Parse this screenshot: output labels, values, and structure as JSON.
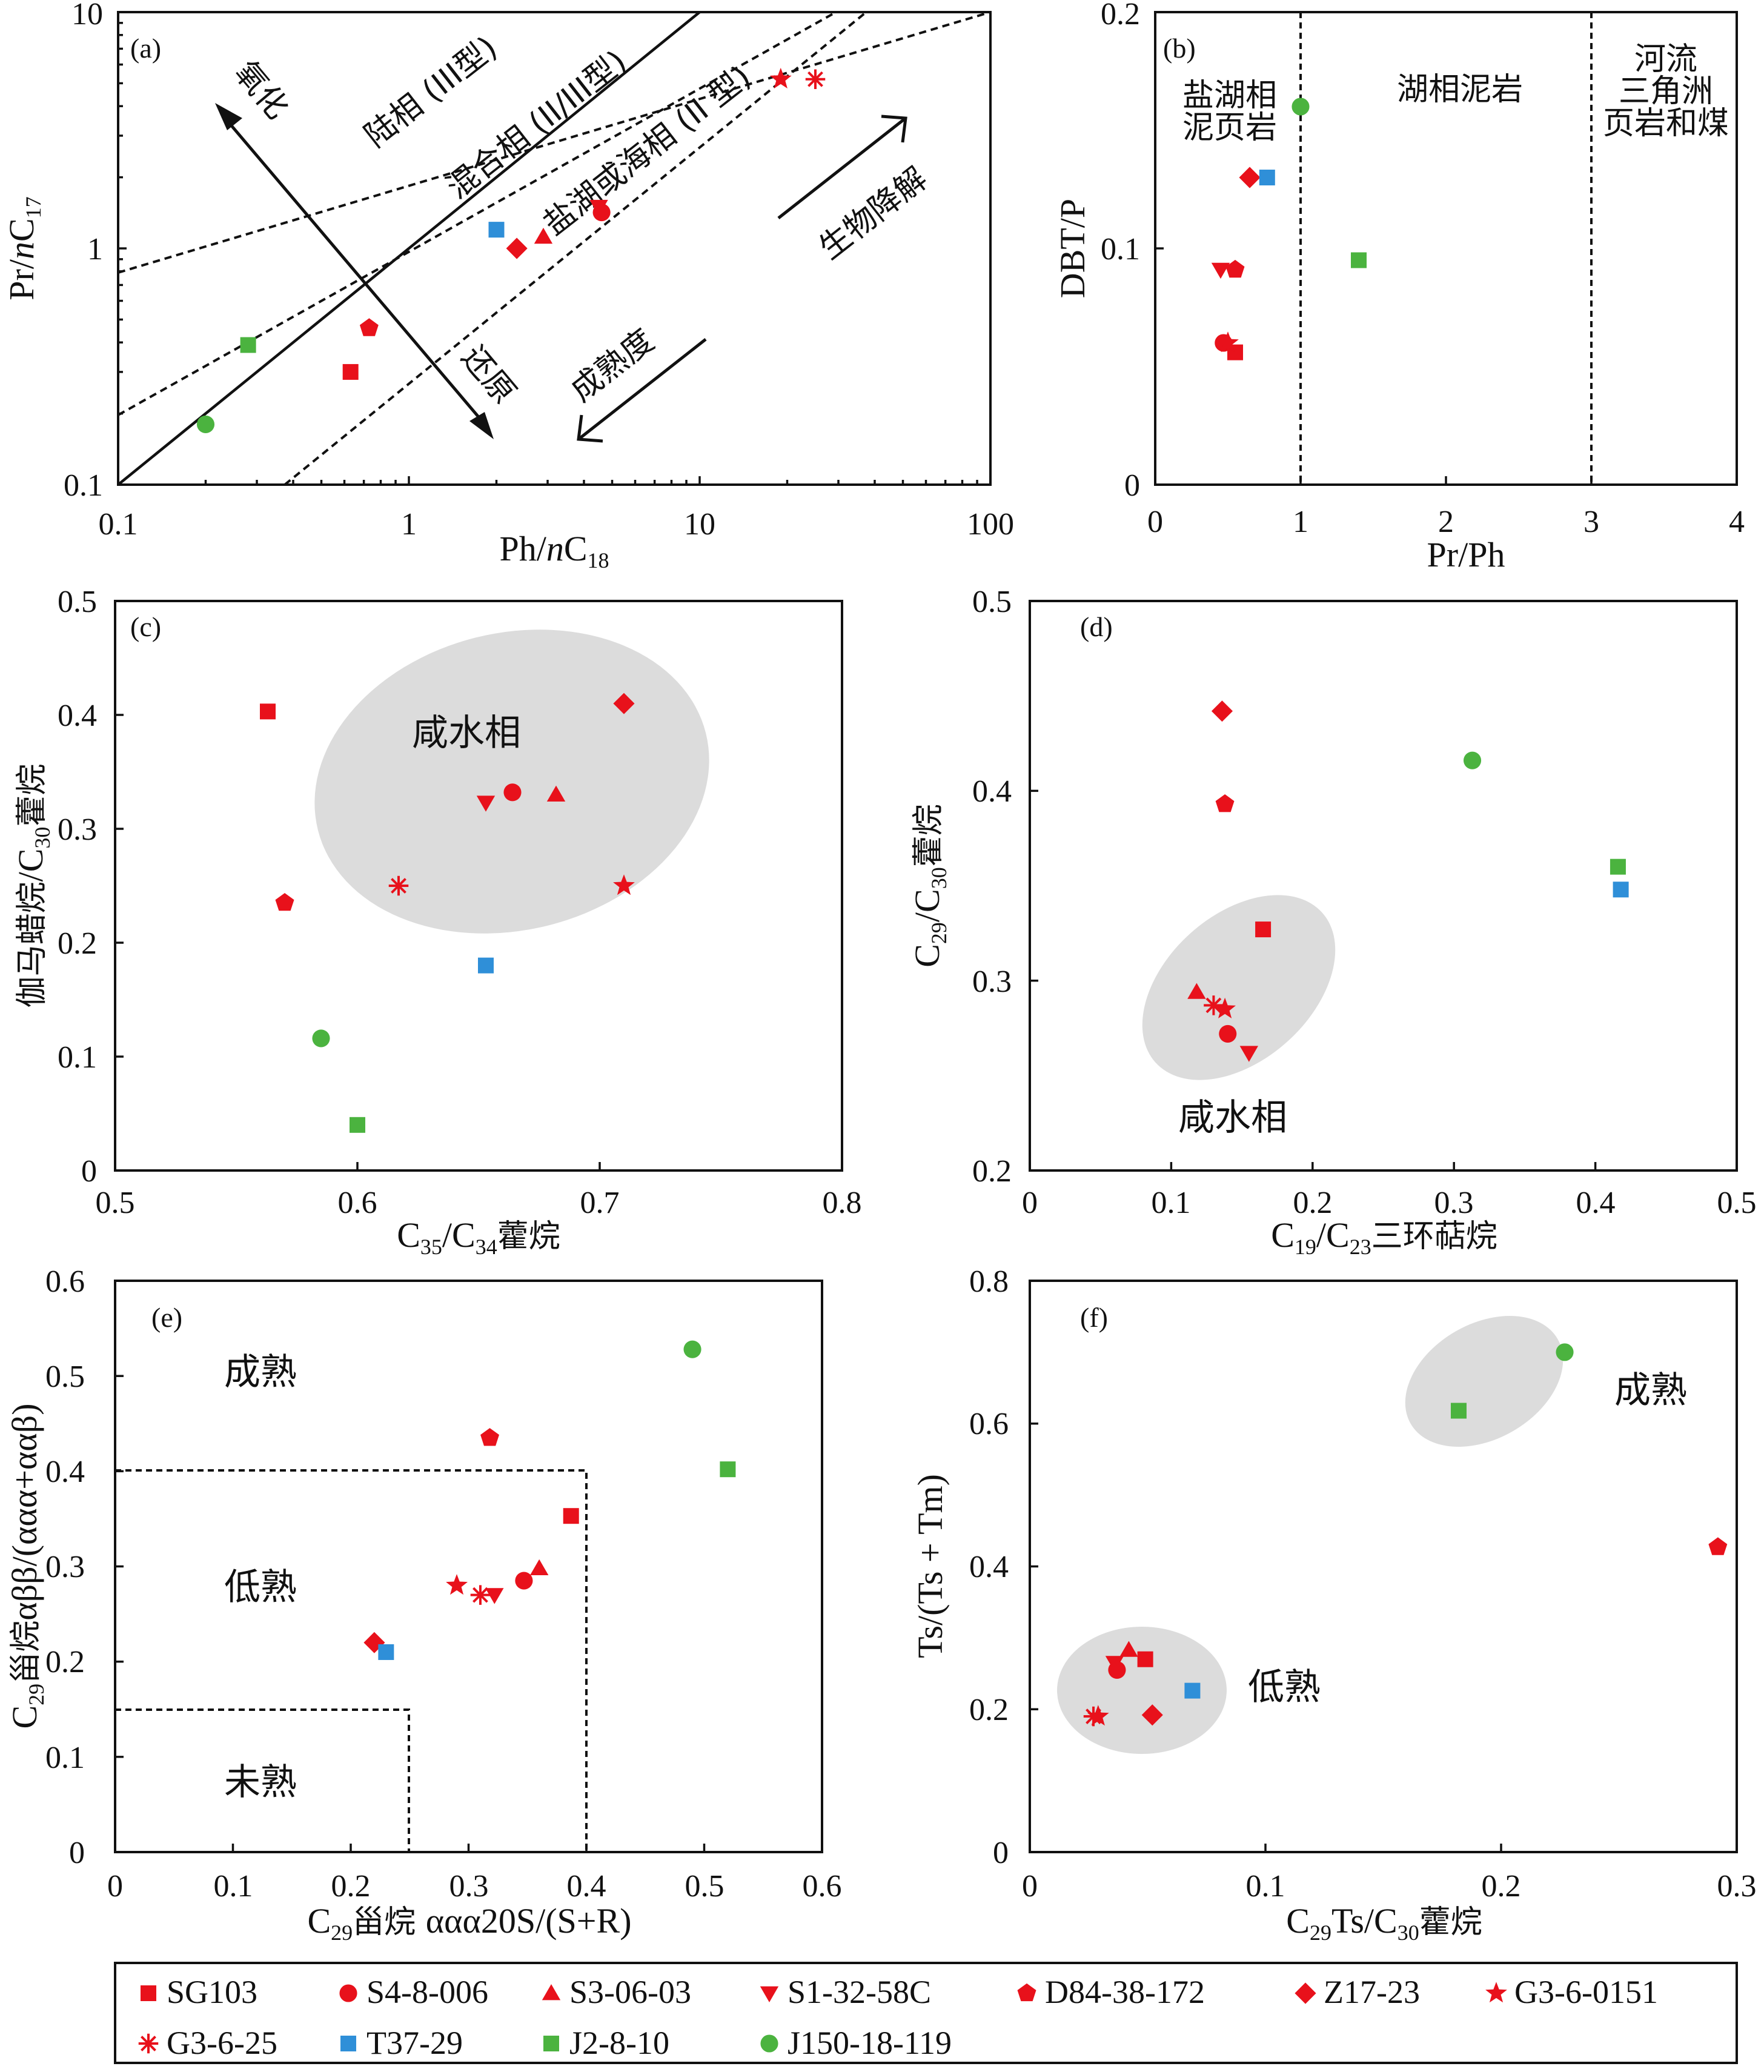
{
  "colors": {
    "red": "#e8111b",
    "blue": "#2f8fd8",
    "green": "#4bb33f",
    "gray": "#dcdcdc"
  },
  "legend": [
    {
      "name": "SG103",
      "marker": "square",
      "color": "#e8111b"
    },
    {
      "name": "S4-8-006",
      "marker": "circle",
      "color": "#e8111b"
    },
    {
      "name": "S3-06-03",
      "marker": "triangle-up",
      "color": "#e8111b"
    },
    {
      "name": "S1-32-58C",
      "marker": "triangle-down",
      "color": "#e8111b"
    },
    {
      "name": "D84-38-172",
      "marker": "pentagon",
      "color": "#e8111b"
    },
    {
      "name": "Z17-23",
      "marker": "diamond",
      "color": "#e8111b"
    },
    {
      "name": "G3-6-0151",
      "marker": "star",
      "color": "#e8111b"
    },
    {
      "name": "G3-6-25",
      "marker": "asterisk",
      "color": "#e8111b"
    },
    {
      "name": "T37-29",
      "marker": "square",
      "color": "#2f8fd8"
    },
    {
      "name": "J2-8-10",
      "marker": "square",
      "color": "#4bb33f"
    },
    {
      "name": "J150-18-119",
      "marker": "circle",
      "color": "#4bb33f"
    }
  ],
  "chart_data": [
    {
      "panel": "(a)",
      "type": "scatter",
      "xscale": "log",
      "yscale": "log",
      "xlim": [
        0.1,
        100
      ],
      "ylim": [
        0.1,
        10
      ],
      "xticks": [
        "0.1",
        "1",
        "10",
        "100"
      ],
      "yticks": [
        "0.1",
        "1",
        "10"
      ],
      "xlabel": "Ph/nC18",
      "ylabel": "Pr/nC17",
      "annotations": [
        "陆相 (III型)",
        "混合相 (II/III型)",
        "盐湖或海相 (II 型)",
        "氧化",
        "还原",
        "成熟度",
        "生物降解"
      ],
      "points": [
        {
          "sample": "SG103",
          "x": 0.63,
          "y": 0.3
        },
        {
          "sample": "S4-8-006",
          "x": 4.6,
          "y": 1.42
        },
        {
          "sample": "S3-06-03",
          "x": 2.9,
          "y": 1.12
        },
        {
          "sample": "S1-32-58C",
          "x": 4.5,
          "y": 1.5
        },
        {
          "sample": "D84-38-172",
          "x": 0.73,
          "y": 0.46
        },
        {
          "sample": "Z17-23",
          "x": 2.35,
          "y": 1.0
        },
        {
          "sample": "G3-6-0151",
          "x": 19,
          "y": 5.2
        },
        {
          "sample": "G3-6-25",
          "x": 25,
          "y": 5.2
        },
        {
          "sample": "T37-29",
          "x": 2.0,
          "y": 1.2
        },
        {
          "sample": "J2-8-10",
          "x": 0.28,
          "y": 0.39
        },
        {
          "sample": "J150-18-119",
          "x": 0.2,
          "y": 0.18
        }
      ]
    },
    {
      "panel": "(b)",
      "type": "scatter",
      "xlim": [
        0,
        4
      ],
      "ylim": [
        0,
        0.2
      ],
      "xticks": [
        "0",
        "1",
        "2",
        "3",
        "4"
      ],
      "yticks": [
        "0",
        "0.1",
        "0.2"
      ],
      "xlabel": "Pr/Ph",
      "ylabel": "DBT/P",
      "zones": [
        "盐湖相",
        "泥页岩",
        "湖相泥岩",
        "河流",
        "三角洲",
        "页岩和煤"
      ],
      "points": [
        {
          "sample": "SG103",
          "x": 0.55,
          "y": 0.056
        },
        {
          "sample": "S4-8-006",
          "x": 0.47,
          "y": 0.06
        },
        {
          "sample": "S1-32-58C",
          "x": 0.45,
          "y": 0.091
        },
        {
          "sample": "D84-38-172",
          "x": 0.55,
          "y": 0.091
        },
        {
          "sample": "Z17-23",
          "x": 0.65,
          "y": 0.13
        },
        {
          "sample": "G3-6-0151",
          "x": 0.5,
          "y": 0.06
        },
        {
          "sample": "T37-29",
          "x": 0.77,
          "y": 0.13
        },
        {
          "sample": "J2-8-10",
          "x": 1.4,
          "y": 0.095
        },
        {
          "sample": "J150-18-119",
          "x": 1.0,
          "y": 0.16
        }
      ]
    },
    {
      "panel": "(c)",
      "type": "scatter",
      "xlim": [
        0.5,
        0.8
      ],
      "ylim": [
        0,
        0.5
      ],
      "xticks": [
        "0.5",
        "0.6",
        "0.7",
        "0.8"
      ],
      "yticks": [
        "0",
        "0.1",
        "0.2",
        "0.3",
        "0.4",
        "0.5"
      ],
      "xlabel": "C35/C34藿烷",
      "ylabel": "伽马蜡烷/C30藿烷",
      "zone_label": "咸水相",
      "points": [
        {
          "sample": "SG103",
          "x": 0.563,
          "y": 0.403
        },
        {
          "sample": "S4-8-006",
          "x": 0.664,
          "y": 0.332
        },
        {
          "sample": "S3-06-03",
          "x": 0.682,
          "y": 0.33
        },
        {
          "sample": "S1-32-58C",
          "x": 0.653,
          "y": 0.323
        },
        {
          "sample": "D84-38-172",
          "x": 0.57,
          "y": 0.235
        },
        {
          "sample": "Z17-23",
          "x": 0.71,
          "y": 0.41
        },
        {
          "sample": "G3-6-0151",
          "x": 0.71,
          "y": 0.25
        },
        {
          "sample": "G3-6-25",
          "x": 0.617,
          "y": 0.25
        },
        {
          "sample": "T37-29",
          "x": 0.653,
          "y": 0.18
        },
        {
          "sample": "J2-8-10",
          "x": 0.6,
          "y": 0.04
        },
        {
          "sample": "J150-18-119",
          "x": 0.585,
          "y": 0.116
        }
      ]
    },
    {
      "panel": "(d)",
      "type": "scatter",
      "xlim": [
        0,
        0.5
      ],
      "ylim": [
        0.2,
        0.5
      ],
      "xticks": [
        "0",
        "0.1",
        "0.2",
        "0.3",
        "0.4",
        "0.5"
      ],
      "yticks": [
        "0.2",
        "0.3",
        "0.4",
        "0.5"
      ],
      "xlabel": "C19/C23三环萜烷",
      "ylabel": "C29/C30藿烷",
      "zone_label": "咸水相",
      "points": [
        {
          "sample": "SG103",
          "x": 0.165,
          "y": 0.327
        },
        {
          "sample": "S4-8-006",
          "x": 0.14,
          "y": 0.272
        },
        {
          "sample": "S3-06-03",
          "x": 0.118,
          "y": 0.294
        },
        {
          "sample": "S1-32-58C",
          "x": 0.155,
          "y": 0.262
        },
        {
          "sample": "D84-38-172",
          "x": 0.138,
          "y": 0.393
        },
        {
          "sample": "Z17-23",
          "x": 0.136,
          "y": 0.442
        },
        {
          "sample": "G3-6-0151",
          "x": 0.138,
          "y": 0.285
        },
        {
          "sample": "G3-6-25",
          "x": 0.13,
          "y": 0.287
        },
        {
          "sample": "T37-29",
          "x": 0.418,
          "y": 0.348
        },
        {
          "sample": "J2-8-10",
          "x": 0.416,
          "y": 0.36
        },
        {
          "sample": "J150-18-119",
          "x": 0.313,
          "y": 0.416
        }
      ]
    },
    {
      "panel": "(e)",
      "type": "scatter",
      "xlim": [
        0,
        0.6
      ],
      "ylim": [
        0,
        0.6
      ],
      "xticks": [
        "0",
        "0.1",
        "0.2",
        "0.3",
        "0.4",
        "0.5",
        "0.6"
      ],
      "yticks": [
        "0",
        "0.1",
        "0.2",
        "0.3",
        "0.4",
        "0.5",
        "0.6"
      ],
      "xlabel": "C29甾烷 ααα20S/(S+R)",
      "ylabel": "C29甾烷αββ/(ααα+ααβ)",
      "zones": [
        "成熟",
        "低熟",
        "未熟"
      ],
      "points": [
        {
          "sample": "SG103",
          "x": 0.387,
          "y": 0.353
        },
        {
          "sample": "S4-8-006",
          "x": 0.347,
          "y": 0.285
        },
        {
          "sample": "S3-06-03",
          "x": 0.36,
          "y": 0.298
        },
        {
          "sample": "S1-32-58C",
          "x": 0.322,
          "y": 0.27
        },
        {
          "sample": "D84-38-172",
          "x": 0.318,
          "y": 0.435
        },
        {
          "sample": "Z17-23",
          "x": 0.22,
          "y": 0.22
        },
        {
          "sample": "G3-6-0151",
          "x": 0.29,
          "y": 0.28
        },
        {
          "sample": "G3-6-25",
          "x": 0.31,
          "y": 0.27
        },
        {
          "sample": "T37-29",
          "x": 0.23,
          "y": 0.21
        },
        {
          "sample": "J2-8-10",
          "x": 0.52,
          "y": 0.402
        },
        {
          "sample": "J150-18-119",
          "x": 0.49,
          "y": 0.528
        }
      ]
    },
    {
      "panel": "(f)",
      "type": "scatter",
      "xlim": [
        0,
        0.3
      ],
      "ylim": [
        0,
        0.8
      ],
      "xticks": [
        "0",
        "0.1",
        "0.2",
        "0.3"
      ],
      "yticks": [
        "0",
        "0.2",
        "0.4",
        "0.6",
        "0.8"
      ],
      "xlabel": "C29Ts/C30藿烷",
      "ylabel": "Ts/(Ts + Tm)",
      "zones": [
        "成熟",
        "低熟"
      ],
      "points": [
        {
          "sample": "SG103",
          "x": 0.049,
          "y": 0.27
        },
        {
          "sample": "S4-8-006",
          "x": 0.037,
          "y": 0.255
        },
        {
          "sample": "S3-06-03",
          "x": 0.042,
          "y": 0.283
        },
        {
          "sample": "S1-32-58C",
          "x": 0.036,
          "y": 0.265
        },
        {
          "sample": "D84-38-172",
          "x": 0.292,
          "y": 0.427
        },
        {
          "sample": "Z17-23",
          "x": 0.052,
          "y": 0.192
        },
        {
          "sample": "G3-6-0151",
          "x": 0.029,
          "y": 0.19
        },
        {
          "sample": "G3-6-25",
          "x": 0.027,
          "y": 0.19
        },
        {
          "sample": "T37-29",
          "x": 0.069,
          "y": 0.226
        },
        {
          "sample": "J2-8-10",
          "x": 0.182,
          "y": 0.618
        },
        {
          "sample": "J150-18-119",
          "x": 0.227,
          "y": 0.7
        }
      ]
    }
  ]
}
